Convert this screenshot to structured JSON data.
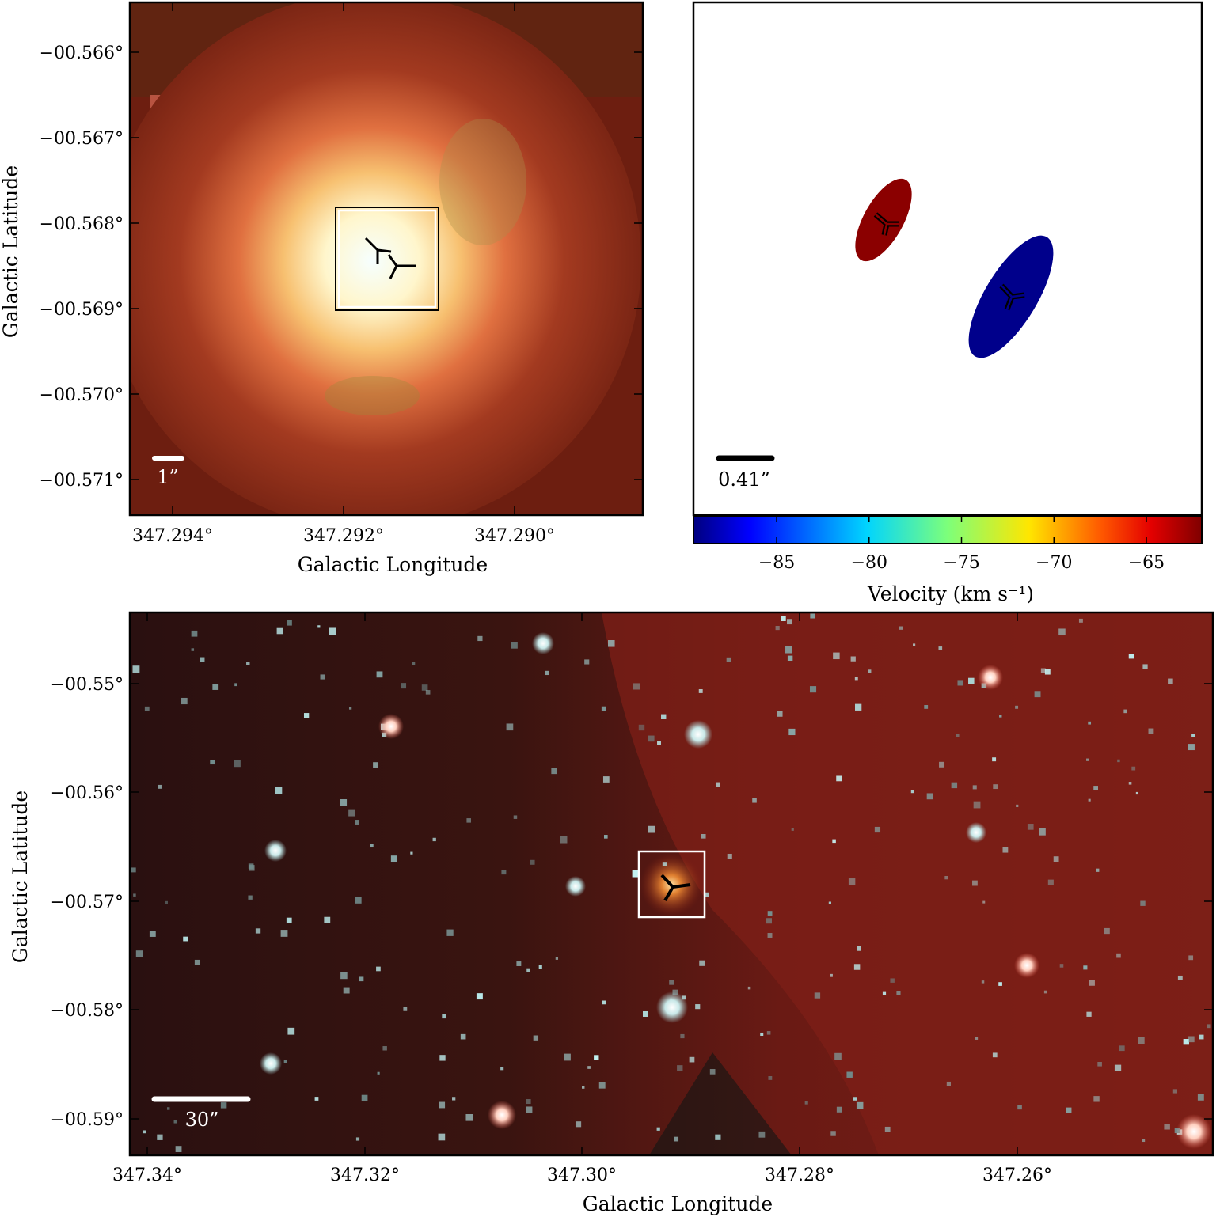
{
  "panels": {
    "zoom": {
      "xlabel": "Galactic Longitude",
      "ylabel": "Galactic Latitude",
      "xticks": [
        "347.294°",
        "347.292°",
        "347.290°"
      ],
      "yticks": [
        "−00.566°",
        "−00.567°",
        "−00.568°",
        "−00.569°",
        "−00.570°",
        "−00.571°"
      ],
      "scalebar": "1”"
    },
    "velocity": {
      "scalebar": "0.41”",
      "colorbar_label": "Velocity (km s⁻¹)",
      "colorbar_ticks": [
        "−85",
        "−80",
        "−75",
        "−70",
        "−65"
      ],
      "colorbar_range": [
        -89.5,
        -62
      ],
      "components": [
        {
          "color": "#8b0000"
        },
        {
          "color": "#00008b"
        }
      ]
    },
    "wide": {
      "xlabel": "Galactic Longitude",
      "ylabel": "Galactic Latitude",
      "xticks": [
        "347.34°",
        "347.32°",
        "347.30°",
        "347.28°",
        "347.26°"
      ],
      "yticks": [
        "−00.55°",
        "−00.56°",
        "−00.57°",
        "−00.58°",
        "−00.59°"
      ],
      "scalebar": "30”"
    }
  }
}
